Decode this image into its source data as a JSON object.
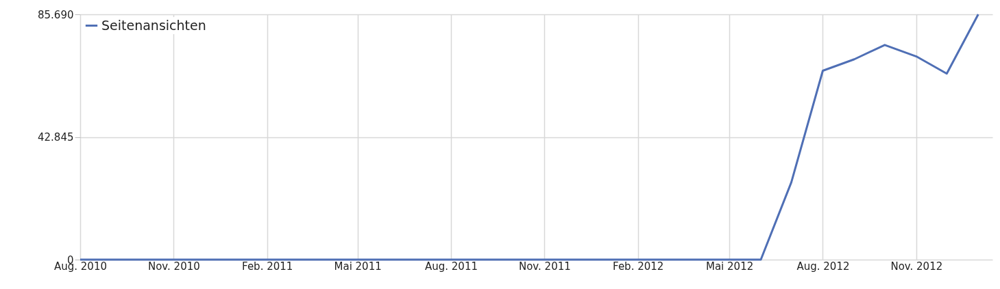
{
  "chart_data": {
    "type": "line",
    "x": [
      "2010-08",
      "2010-09",
      "2010-10",
      "2010-11",
      "2010-12",
      "2011-01",
      "2011-02",
      "2011-03",
      "2011-04",
      "2011-05",
      "2011-06",
      "2011-07",
      "2011-08",
      "2011-09",
      "2011-10",
      "2011-11",
      "2011-12",
      "2012-01",
      "2012-02",
      "2012-03",
      "2012-04",
      "2012-05",
      "2012-06",
      "2012-07",
      "2012-08",
      "2012-09",
      "2012-10",
      "2012-11",
      "2012-12",
      "2013-01"
    ],
    "series": [
      {
        "name": "Seitenansichten",
        "color": "#4f6fb5",
        "values": [
          0,
          0,
          0,
          0,
          0,
          0,
          0,
          0,
          0,
          0,
          0,
          0,
          0,
          0,
          0,
          0,
          0,
          0,
          0,
          0,
          0,
          0,
          0,
          27000,
          66000,
          70000,
          75000,
          71000,
          65000,
          85690
        ]
      }
    ],
    "xlim": [
      "2010-08",
      "2013-01-15"
    ],
    "xticks": [
      {
        "value": "2010-08",
        "label": "Aug. 2010"
      },
      {
        "value": "2010-11",
        "label": "Nov. 2010"
      },
      {
        "value": "2011-02",
        "label": "Feb. 2011"
      },
      {
        "value": "2011-05",
        "label": "Mai 2011"
      },
      {
        "value": "2011-08",
        "label": "Aug. 2011"
      },
      {
        "value": "2011-11",
        "label": "Nov. 2011"
      },
      {
        "value": "2012-02",
        "label": "Feb. 2012"
      },
      {
        "value": "2012-05",
        "label": "Mai 2012"
      },
      {
        "value": "2012-08",
        "label": "Aug. 2012"
      },
      {
        "value": "2012-11",
        "label": "Nov. 2012"
      }
    ],
    "ylim": [
      0,
      85690
    ],
    "yticks": [
      0,
      {
        "value": 42845,
        "label": "42.845"
      },
      {
        "value": 85690,
        "label": "85.690"
      }
    ],
    "grid": true,
    "legend": "top left",
    "marker": "none",
    "line_style": "solid"
  }
}
